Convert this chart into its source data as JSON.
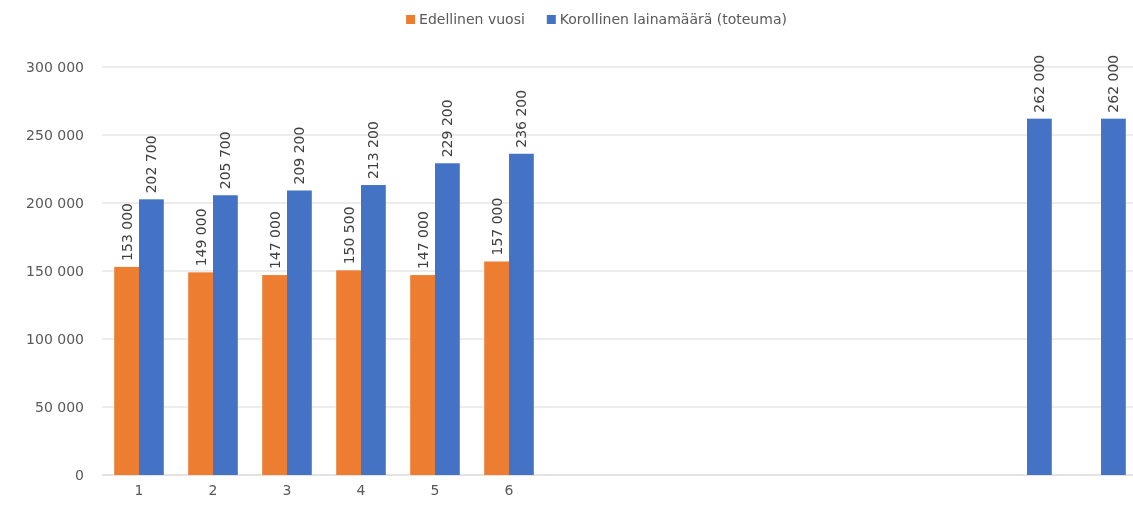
{
  "chart_data": {
    "type": "bar",
    "categories": [
      "1",
      "2",
      "3",
      "4",
      "5",
      "6",
      null,
      null,
      null,
      null,
      null,
      null,
      null,
      null
    ],
    "series": [
      {
        "name": "Edellinen vuosi",
        "color": "#ed7d31",
        "values": [
          153000,
          149000,
          147000,
          150500,
          147000,
          157000,
          null,
          null,
          null,
          null,
          null,
          null,
          null,
          null
        ]
      },
      {
        "name": "Korollinen lainamäärä (toteuma)",
        "color": "#4472c4",
        "values": [
          202700,
          205700,
          209200,
          213200,
          229200,
          236200,
          null,
          null,
          null,
          null,
          null,
          null,
          262000,
          262000
        ]
      }
    ],
    "ylim": [
      0,
      300000
    ],
    "yticks": [
      {
        "value": 0,
        "label": "0"
      },
      {
        "value": 50000,
        "label": "50 000"
      },
      {
        "value": 100000,
        "label": "100 000"
      },
      {
        "value": 150000,
        "label": "150 000"
      },
      {
        "value": 200000,
        "label": "200 000"
      },
      {
        "value": 250000,
        "label": "250 000"
      },
      {
        "value": 300000,
        "label": "300 000"
      }
    ],
    "grid": "y",
    "legend": "top",
    "data_labels": true
  }
}
